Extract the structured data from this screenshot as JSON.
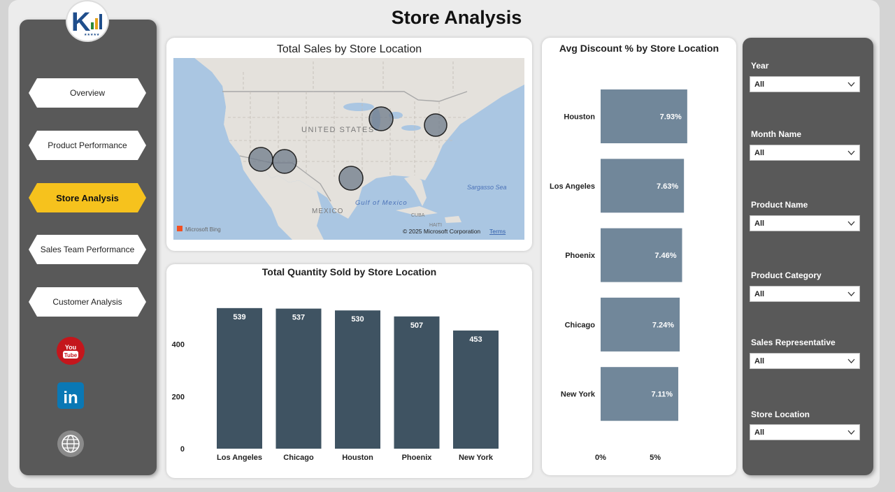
{
  "page": {
    "title": "Store Analysis"
  },
  "nav": {
    "items": [
      {
        "label": "Overview",
        "active": false
      },
      {
        "label": "Product Performance",
        "active": false
      },
      {
        "label": "Store Analysis",
        "active": true
      },
      {
        "label": "Sales Team Performance",
        "active": false
      },
      {
        "label": "Customer Analysis",
        "active": false
      }
    ],
    "social": [
      "youtube-icon",
      "linkedin-icon",
      "globe-icon"
    ],
    "youtube_text": "YouTube",
    "linkedin_text": "in"
  },
  "map_card": {
    "title": "Total Sales by Store Location",
    "labels": {
      "country_us": "UNITED STATES",
      "country_mx": "MEXICO",
      "gulf": "Gulf of Mexico",
      "sea": "Sargasso Sea",
      "cuba": "CUBA",
      "haiti": "HAITI"
    },
    "attribution": "© 2025 Microsoft Corporation",
    "terms_link": "Terms",
    "brand": "Microsoft Bing",
    "bubble_locations": [
      "Los Angeles",
      "Phoenix",
      "Houston",
      "Chicago",
      "New York"
    ]
  },
  "qty_chart_title": "Total Quantity Sold by Store Location",
  "discount_chart_title": "Avg Discount % by Store Location",
  "chart_data": [
    {
      "type": "bar",
      "title": "Total Quantity Sold by Store Location",
      "categories": [
        "Los Angeles",
        "Chicago",
        "Houston",
        "Phoenix",
        "New York"
      ],
      "values": [
        539,
        537,
        530,
        507,
        453
      ],
      "data_labels": [
        "539",
        "537",
        "530",
        "507",
        "453"
      ],
      "y_ticks": [
        "0",
        "200",
        "400"
      ],
      "ylim": [
        0,
        560
      ],
      "color": "#3f5362"
    },
    {
      "type": "bar",
      "orientation": "horizontal",
      "title": "Avg Discount % by Store Location",
      "categories": [
        "Houston",
        "Los Angeles",
        "Phoenix",
        "Chicago",
        "New York"
      ],
      "values": [
        7.93,
        7.63,
        7.46,
        7.24,
        7.11
      ],
      "data_labels": [
        "7.93%",
        "7.63%",
        "7.46%",
        "7.24%",
        "7.11%"
      ],
      "x_ticks": [
        "0%",
        "5%"
      ],
      "xlim": [
        0,
        10.5
      ],
      "color": "#71879a"
    }
  ],
  "slicers": [
    {
      "label": "Year",
      "value": "All"
    },
    {
      "label": "Month Name",
      "value": "All"
    },
    {
      "label": "Product Name",
      "value": "All"
    },
    {
      "label": "Product Category",
      "value": "All"
    },
    {
      "label": "Sales Representative",
      "value": "All"
    },
    {
      "label": "Store Location",
      "value": "All"
    }
  ],
  "colors": {
    "accent": "#f6c21d",
    "panel": "#595959",
    "bar_dark": "#3f5362",
    "bar_light": "#71879a"
  }
}
